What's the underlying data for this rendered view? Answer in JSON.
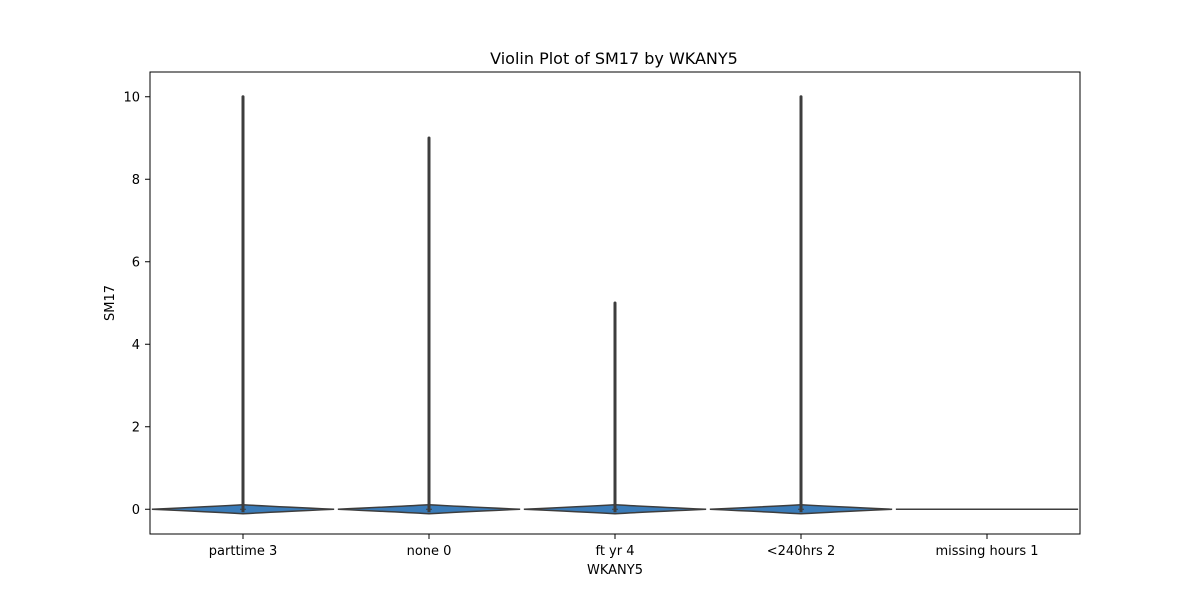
{
  "chart_data": {
    "type": "violin",
    "title": "Violin Plot of SM17 by WKANY5",
    "xlabel": "WKANY5",
    "ylabel": "SM17",
    "categories": [
      "parttime 3",
      "none 0",
      "ft yr 4",
      "<240hrs 2",
      "missing hours 1"
    ],
    "y_ticks": [
      0,
      2,
      4,
      6,
      8,
      10
    ],
    "ylim": [
      -0.6,
      10.6
    ],
    "grid": false,
    "legend": "none",
    "series": [
      {
        "category": "parttime 3",
        "min": 0,
        "max": 10,
        "median": 0,
        "q1": 0,
        "q3": 0
      },
      {
        "category": "none 0",
        "min": 0,
        "max": 9,
        "median": 0,
        "q1": 0,
        "q3": 0
      },
      {
        "category": "ft yr 4",
        "min": 0,
        "max": 5,
        "median": 0,
        "q1": 0,
        "q3": 0
      },
      {
        "category": "<240hrs 2",
        "min": 0,
        "max": 10,
        "median": 0,
        "q1": 0,
        "q3": 0
      },
      {
        "category": "missing hours 1",
        "min": 0,
        "max": 0,
        "median": 0,
        "q1": 0,
        "q3": 0
      }
    ],
    "colors": {
      "violin_fill": "#3a7bb8",
      "violin_edge": "#3d3d3d",
      "axes": "#000000"
    }
  }
}
